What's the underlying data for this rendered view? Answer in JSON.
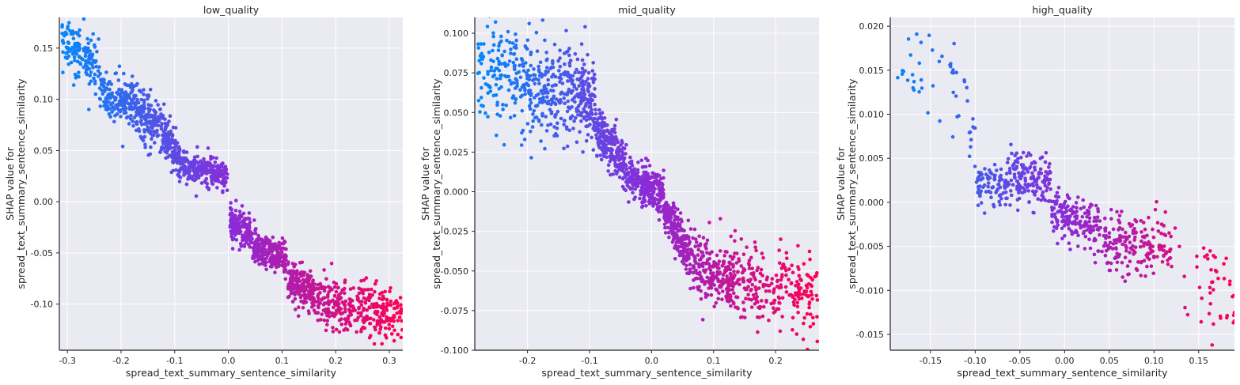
{
  "chart_data": [
    {
      "type": "scatter",
      "title": "low_quality",
      "xlabel": "spread_text_summary_sentence_similarity",
      "ylabel_lines": [
        "SHAP value for",
        "spread_text_summary_sentence_similarity"
      ],
      "xlim": [
        -0.315,
        0.325
      ],
      "ylim": [
        -0.145,
        0.18
      ],
      "xticks": [
        -0.3,
        -0.2,
        -0.1,
        0.0,
        0.1,
        0.2,
        0.3
      ],
      "xtick_labels": [
        "-0.3",
        "-0.2",
        "-0.1",
        "0.0",
        "0.1",
        "0.2",
        "0.3"
      ],
      "yticks": [
        -0.1,
        -0.05,
        0.0,
        0.05,
        0.1,
        0.15
      ],
      "ytick_labels": [
        "-0.10",
        "-0.05",
        "0.00",
        "0.05",
        "0.10",
        "0.15"
      ],
      "grid": true,
      "color_scale": [
        "#008afb",
        "#8a2bd8",
        "#ff0052"
      ],
      "trend": [
        {
          "x": [
            -0.31,
            -0.24
          ],
          "y": [
            0.16,
            0.13
          ],
          "spread": 0.012,
          "n": 140
        },
        {
          "x": [
            -0.24,
            -0.175
          ],
          "y": [
            0.11,
            0.095
          ],
          "spread": 0.011,
          "n": 170
        },
        {
          "x": [
            -0.175,
            -0.12
          ],
          "y": [
            0.092,
            0.068
          ],
          "spread": 0.013,
          "n": 170
        },
        {
          "x": [
            -0.12,
            -0.09
          ],
          "y": [
            0.066,
            0.04
          ],
          "spread": 0.01,
          "n": 120
        },
        {
          "x": [
            -0.09,
            -0.002
          ],
          "y": [
            0.036,
            0.026
          ],
          "spread": 0.007,
          "n": 260
        },
        {
          "x": [
            0.002,
            0.045
          ],
          "y": [
            -0.02,
            -0.033
          ],
          "spread": 0.008,
          "n": 150
        },
        {
          "x": [
            0.045,
            0.11
          ],
          "y": [
            -0.045,
            -0.055
          ],
          "spread": 0.008,
          "n": 230
        },
        {
          "x": [
            0.11,
            0.16
          ],
          "y": [
            -0.075,
            -0.088
          ],
          "spread": 0.01,
          "n": 180
        },
        {
          "x": [
            0.16,
            0.325
          ],
          "y": [
            -0.096,
            -0.11
          ],
          "spread": 0.012,
          "n": 330
        }
      ]
    },
    {
      "type": "scatter",
      "title": "mid_quality",
      "xlabel": "spread_text_summary_sentence_similarity",
      "ylabel_lines": [
        "SHAP value for",
        "spread_text_summary_sentence_similarity"
      ],
      "xlim": [
        -0.285,
        0.27
      ],
      "ylim": [
        -0.1,
        0.11
      ],
      "xticks": [
        -0.2,
        -0.1,
        0.0,
        0.1,
        0.2
      ],
      "xtick_labels": [
        "-0.2",
        "-0.1",
        "0.0",
        "0.1",
        "0.2"
      ],
      "yticks": [
        -0.1,
        -0.075,
        -0.05,
        -0.025,
        0.0,
        0.025,
        0.05,
        0.075,
        0.1
      ],
      "ytick_labels": [
        "-0.100",
        "-0.075",
        "-0.050",
        "-0.025",
        "0.000",
        "0.025",
        "0.050",
        "0.075",
        "0.100"
      ],
      "grid": true,
      "color_scale": [
        "#008afb",
        "#8a2bd8",
        "#ff0052"
      ],
      "trend": [
        {
          "x": [
            -0.28,
            -0.2
          ],
          "y": [
            0.075,
            0.07
          ],
          "spread": 0.016,
          "n": 160
        },
        {
          "x": [
            -0.2,
            -0.12
          ],
          "y": [
            0.068,
            0.062
          ],
          "spread": 0.016,
          "n": 220
        },
        {
          "x": [
            -0.12,
            -0.09
          ],
          "y": [
            0.062,
            0.055
          ],
          "spread": 0.012,
          "n": 120
        },
        {
          "x": [
            -0.09,
            -0.04
          ],
          "y": [
            0.04,
            0.014
          ],
          "spread": 0.008,
          "n": 220
        },
        {
          "x": [
            -0.04,
            0.02
          ],
          "y": [
            0.01,
            -0.002
          ],
          "spread": 0.006,
          "n": 260
        },
        {
          "x": [
            0.02,
            0.06
          ],
          "y": [
            -0.012,
            -0.038
          ],
          "spread": 0.007,
          "n": 200
        },
        {
          "x": [
            0.06,
            0.14
          ],
          "y": [
            -0.045,
            -0.058
          ],
          "spread": 0.01,
          "n": 260
        },
        {
          "x": [
            0.14,
            0.27
          ],
          "y": [
            -0.058,
            -0.064
          ],
          "spread": 0.012,
          "n": 220
        }
      ]
    },
    {
      "type": "scatter",
      "title": "high_quality",
      "xlabel": "spread_text_summary_sentence_similarity",
      "ylabel_lines": [
        "SHAP value for",
        "spread_text_summary_sentence_similarity"
      ],
      "xlim": [
        -0.195,
        0.19
      ],
      "ylim": [
        -0.0168,
        0.021
      ],
      "xticks": [
        -0.15,
        -0.1,
        -0.05,
        0.0,
        0.05,
        0.1,
        0.15
      ],
      "xtick_labels": [
        "-0.15",
        "-0.10",
        "-0.05",
        "0.00",
        "0.05",
        "0.10",
        "0.15"
      ],
      "yticks": [
        -0.015,
        -0.01,
        -0.005,
        0.0,
        0.005,
        0.01,
        0.015,
        0.02
      ],
      "ytick_labels": [
        "-0.015",
        "-0.010",
        "-0.005",
        "0.000",
        "0.005",
        "0.010",
        "0.015",
        "0.020"
      ],
      "grid": true,
      "color_scale": [
        "#008afb",
        "#8a2bd8",
        "#ff0052"
      ],
      "trend": [
        {
          "x": [
            -0.19,
            -0.11
          ],
          "y": [
            0.016,
            0.013
          ],
          "spread": 0.0025,
          "n": 40
        },
        {
          "x": [
            -0.11,
            -0.1
          ],
          "y": [
            0.009,
            0.006
          ],
          "spread": 0.002,
          "n": 12
        },
        {
          "x": [
            -0.1,
            -0.065
          ],
          "y": [
            0.0022,
            0.0018
          ],
          "spread": 0.0012,
          "n": 80
        },
        {
          "x": [
            -0.065,
            -0.015
          ],
          "y": [
            0.003,
            0.0022
          ],
          "spread": 0.0016,
          "n": 150
        },
        {
          "x": [
            -0.015,
            0.04
          ],
          "y": [
            -0.0012,
            -0.003
          ],
          "spread": 0.0013,
          "n": 160
        },
        {
          "x": [
            0.04,
            0.12
          ],
          "y": [
            -0.0045,
            -0.0055
          ],
          "spread": 0.0018,
          "n": 180
        },
        {
          "x": [
            0.12,
            0.19
          ],
          "y": [
            -0.0075,
            -0.011
          ],
          "spread": 0.0028,
          "n": 45
        }
      ]
    }
  ]
}
